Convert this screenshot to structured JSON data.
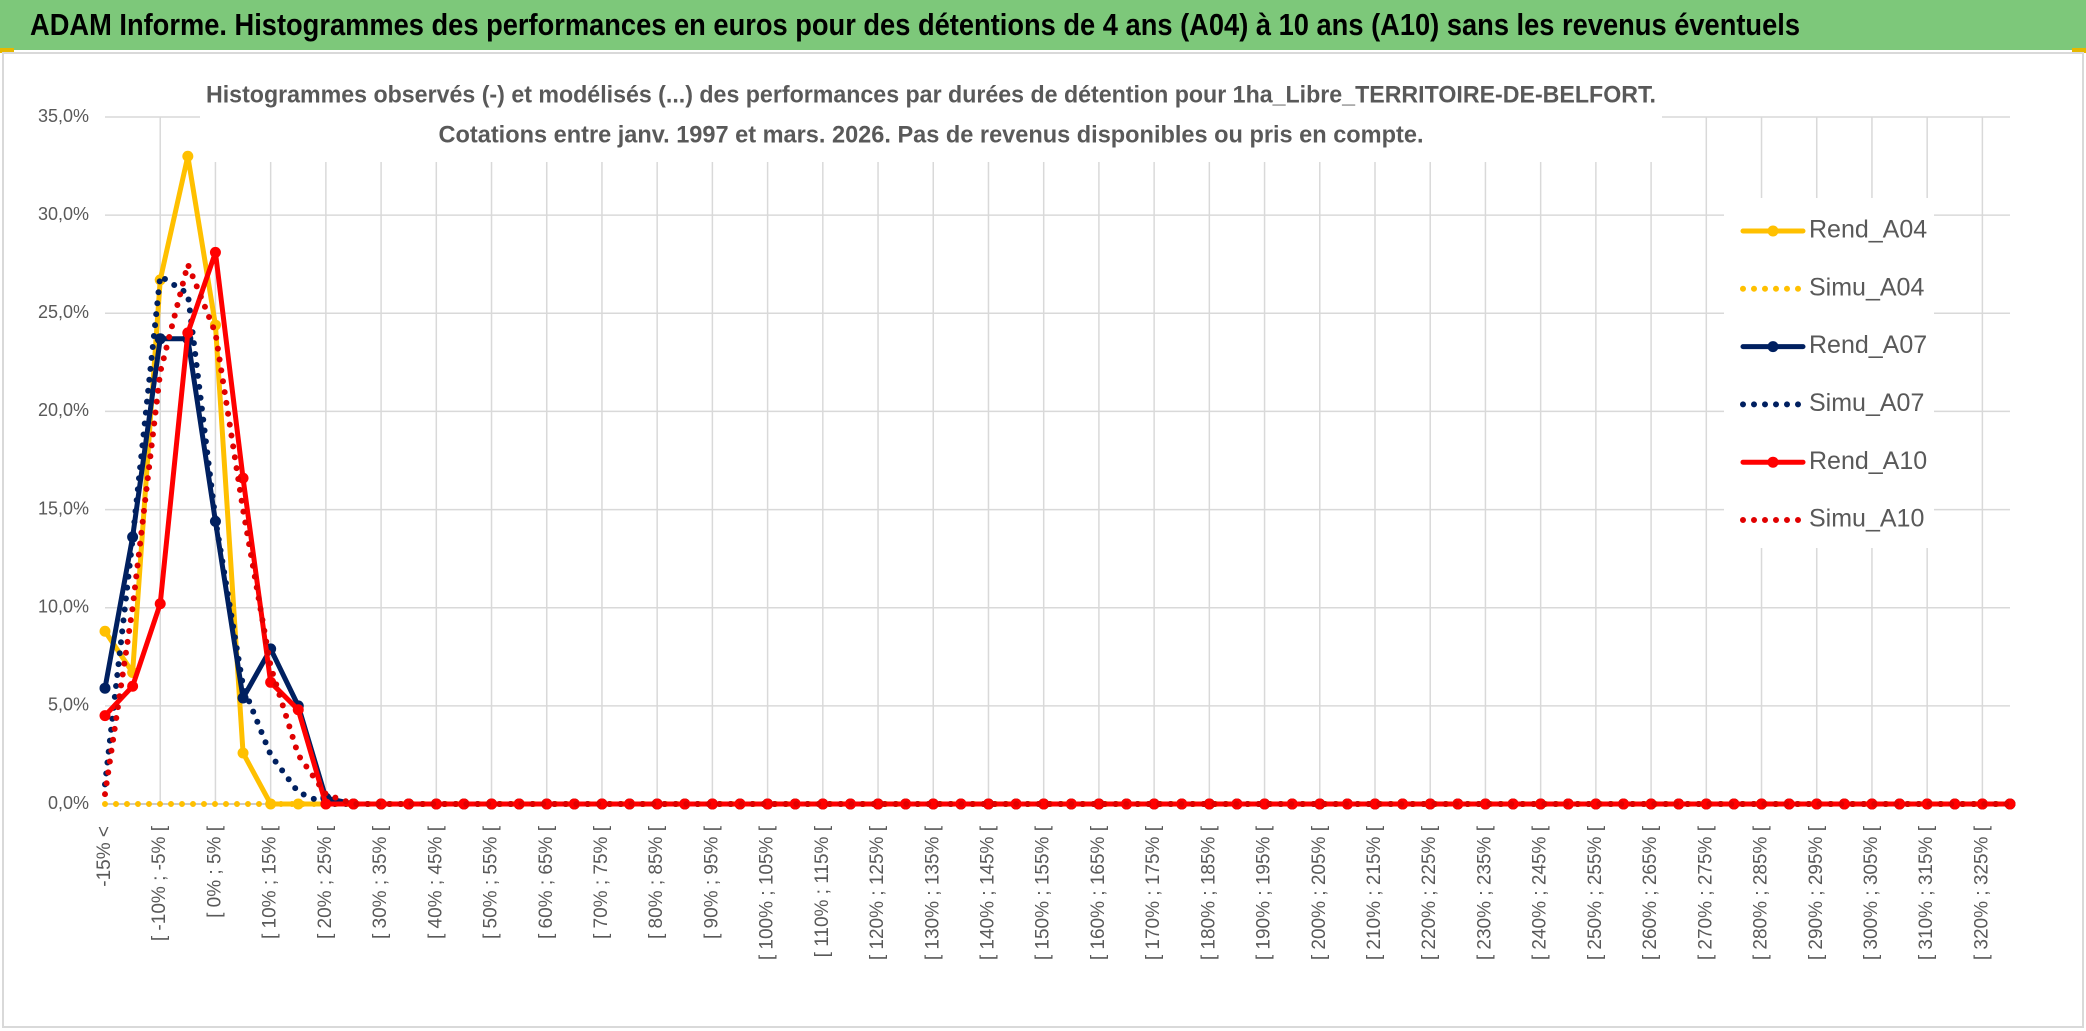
{
  "header": {
    "title": "ADAM Informe. Histogrammes des performances en euros pour des détentions de 4 ans (A04) à 10 ans (A10) sans les revenus éventuels"
  },
  "chart_data": {
    "type": "line",
    "title": "Histogrammes observés (-) et modélisés (...) des performances par durées de détention pour 1ha_Libre_TERRITOIRE-DE-BELFORT.",
    "subtitle": "Cotations entre janv. 1997 et mars. 2026. Pas de revenus disponibles ou pris en compte.",
    "categories": [
      "-15% <",
      null,
      "[ -10% ; -5% [",
      null,
      "[ 0% ; 5% [",
      null,
      "[ 10% ; 15% [",
      null,
      "[ 20% ; 25% [",
      null,
      "[ 30% ; 35% [",
      null,
      "[ 40% ; 45% [",
      null,
      "[ 50% ; 55% [",
      null,
      "[ 60% ; 65% [",
      null,
      "[ 70% ; 75% [",
      null,
      "[ 80% ; 85% [",
      null,
      "[ 90% ; 95% [",
      null,
      "[ 100% ; 105% [",
      null,
      "[ 110% ; 115% [",
      null,
      "[ 120% ; 125% [",
      null,
      "[ 130% ; 135% [",
      null,
      "[ 140% ; 145% [",
      null,
      "[ 150% ; 155% [",
      null,
      "[ 160% ; 165% [",
      null,
      "[ 170% ; 175% [",
      null,
      "[ 180% ; 185% [",
      null,
      "[ 190% ; 195% [",
      null,
      "[ 200% ; 205% [",
      null,
      "[ 210% ; 215% [",
      null,
      "[ 220% ; 225% [",
      null,
      "[ 230% ; 235% [",
      null,
      "[ 240% ; 245% [",
      null,
      "[ 250% ; 255% [",
      null,
      "[ 260% ; 265% [",
      null,
      "[ 270% ; 275% [",
      null,
      "[ 280% ; 285% [",
      null,
      "[ 290% ; 295% [",
      null,
      "[ 300% ; 305% [",
      null,
      "[ 310% ; 315% [",
      null,
      "[ 320% ; 325% [",
      null
    ],
    "series": [
      {
        "name": "Rend_A04",
        "color": "#FFC000",
        "style": "solid",
        "markers": true,
        "values": [
          8.8,
          6.7,
          26.7,
          33.0,
          24.4,
          2.6,
          0,
          0,
          0,
          0,
          0,
          0,
          0,
          0,
          0,
          0,
          0,
          0,
          0,
          0,
          0,
          0,
          0,
          0,
          0,
          0,
          0,
          0,
          0,
          0,
          0,
          0,
          0,
          0,
          0,
          0,
          0,
          0,
          0,
          0,
          0,
          0,
          0,
          0,
          0,
          0,
          0,
          0,
          0,
          0,
          0,
          0,
          0,
          0,
          0,
          0,
          0,
          0,
          0,
          0,
          0,
          0,
          0,
          0,
          0,
          0,
          0,
          0,
          0,
          0
        ]
      },
      {
        "name": "Simu_A04",
        "color": "#FFC000",
        "style": "dotted",
        "markers": false,
        "values": [
          0,
          0,
          0,
          0,
          0,
          0,
          0,
          0,
          0,
          0,
          0,
          0,
          0,
          0,
          0,
          0,
          0,
          0,
          0,
          0,
          0,
          0,
          0,
          0,
          0,
          0,
          0,
          0,
          0,
          0,
          0,
          0,
          0,
          0,
          0,
          0,
          0,
          0,
          0,
          0,
          0,
          0,
          0,
          0,
          0,
          0,
          0,
          0,
          0,
          0,
          0,
          0,
          0,
          0,
          0,
          0,
          0,
          0,
          0,
          0,
          0,
          0,
          0,
          0,
          0,
          0,
          0,
          0,
          0,
          0
        ]
      },
      {
        "name": "Rend_A07",
        "color": "#002060",
        "style": "solid",
        "markers": true,
        "values": [
          5.9,
          13.6,
          23.7,
          23.7,
          14.4,
          5.4,
          7.9,
          5.0,
          0.3,
          0,
          0,
          0,
          0,
          0,
          0,
          0,
          0,
          0,
          0,
          0,
          0,
          0,
          0,
          0,
          0,
          0,
          0,
          0,
          0,
          0,
          0,
          0,
          0,
          0,
          0,
          0,
          0,
          0,
          0,
          0,
          0,
          0,
          0,
          0,
          0,
          0,
          0,
          0,
          0,
          0,
          0,
          0,
          0,
          0,
          0,
          0,
          0,
          0,
          0,
          0,
          0,
          0,
          0,
          0,
          0,
          0,
          0,
          0,
          0,
          0
        ]
      },
      {
        "name": "Simu_A07",
        "color": "#002060",
        "style": "dotted",
        "markers": false,
        "values": [
          1.0,
          13.5,
          26.9,
          26.0,
          14.5,
          6.0,
          2.5,
          0.6,
          0,
          0,
          0,
          0,
          0,
          0,
          0,
          0,
          0,
          0,
          0,
          0,
          0,
          0,
          0,
          0,
          0,
          0,
          0,
          0,
          0,
          0,
          0,
          0,
          0,
          0,
          0,
          0,
          0,
          0,
          0,
          0,
          0,
          0,
          0,
          0,
          0,
          0,
          0,
          0,
          0,
          0,
          0,
          0,
          0,
          0,
          0,
          0,
          0,
          0,
          0,
          0,
          0,
          0,
          0,
          0,
          0,
          0,
          0,
          0,
          0,
          0
        ]
      },
      {
        "name": "Rend_A10",
        "color": "#FF0000",
        "style": "solid",
        "markers": true,
        "values": [
          4.5,
          6.0,
          10.2,
          24.0,
          28.1,
          16.6,
          6.2,
          4.8,
          0,
          0,
          0,
          0,
          0,
          0,
          0,
          0,
          0,
          0,
          0,
          0,
          0,
          0,
          0,
          0,
          0,
          0,
          0,
          0,
          0,
          0,
          0,
          0,
          0,
          0,
          0,
          0,
          0,
          0,
          0,
          0,
          0,
          0,
          0,
          0,
          0,
          0,
          0,
          0,
          0,
          0,
          0,
          0,
          0,
          0,
          0,
          0,
          0,
          0,
          0,
          0,
          0,
          0,
          0,
          0,
          0,
          0,
          0,
          0,
          0,
          0
        ]
      },
      {
        "name": "Simu_A10",
        "color": "#E00000",
        "style": "dotted",
        "markers": false,
        "values": [
          0.5,
          10.0,
          22.0,
          27.5,
          24.0,
          15.0,
          7.0,
          2.5,
          0.5,
          0,
          0,
          0,
          0,
          0,
          0,
          0,
          0,
          0,
          0,
          0,
          0,
          0,
          0,
          0,
          0,
          0,
          0,
          0,
          0,
          0,
          0,
          0,
          0,
          0,
          0,
          0,
          0,
          0,
          0,
          0,
          0,
          0,
          0,
          0,
          0,
          0,
          0,
          0,
          0,
          0,
          0,
          0,
          0,
          0,
          0,
          0,
          0,
          0,
          0,
          0,
          0,
          0,
          0,
          0,
          0,
          0,
          0,
          0,
          0,
          0
        ]
      }
    ],
    "ylim": [
      0,
      35
    ],
    "yticks": [
      {
        "value": 0,
        "label": "0,0%"
      },
      {
        "value": 5,
        "label": "5,0%"
      },
      {
        "value": 10,
        "label": "10,0%"
      },
      {
        "value": 15,
        "label": "15,0%"
      },
      {
        "value": 20,
        "label": "20,0%"
      },
      {
        "value": 25,
        "label": "25,0%"
      },
      {
        "value": 30,
        "label": "30,0%"
      },
      {
        "value": 35,
        "label": "35,0%"
      }
    ],
    "grid": true,
    "legend": "right"
  }
}
